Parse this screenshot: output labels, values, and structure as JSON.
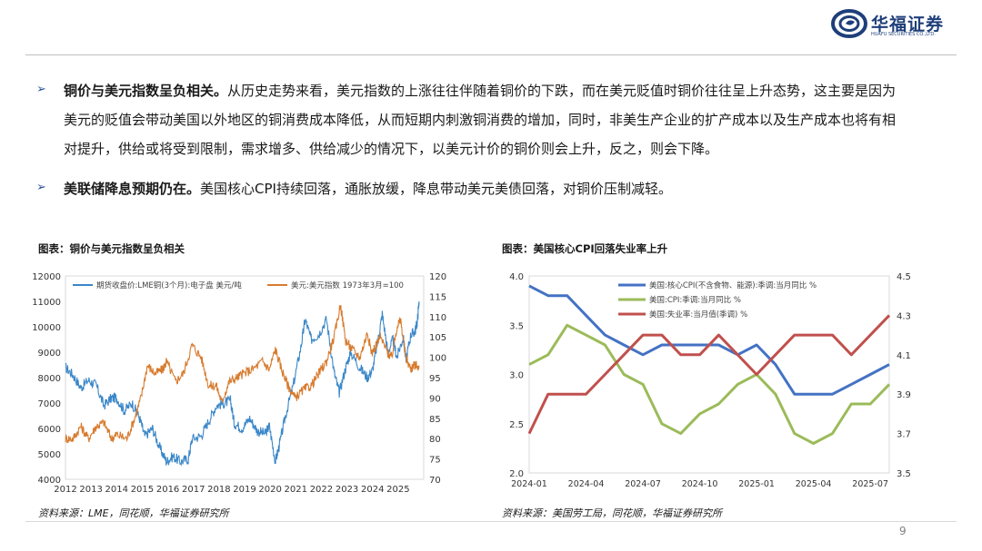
{
  "brand": {
    "name": "华福证券",
    "subtitle": "HUAFU SECURITIES CO.,LTD.",
    "colors": {
      "primary": "#1e3f7a"
    }
  },
  "bullets": [
    {
      "bold": "铜价与美元指数呈负相关。",
      "lines": [
        "从历史走势来看，美元指数的上涨往往伴随着铜价的下跌，而在美元贬值时铜价往往呈上升态势，这主要是因为",
        "美元的贬值会带动美国以外地区的铜消费成本降低，从而短期内刺激铜消费的增加，同时，非美生产企业的扩产成本以及生产成本也将有相",
        "对提升，供给或将受到限制，需求增多、供给减少的情况下，以美元计价的铜价则会上升，反之，则会下降。"
      ]
    },
    {
      "bold": "美联储降息预期仍在。",
      "lines": [
        "美国核心CPI持续回落，通胀放缓，降息带动美元美债回落，对铜价压制减轻。"
      ]
    }
  ],
  "left_panel": {
    "title": "图表：铜价与美元指数呈负相关",
    "source": "资料来源：LME，同花顺，华福证券研究所"
  },
  "right_panel": {
    "title": "图表：美国核心CPI回落失业率上升",
    "source": "资料来源：美国劳工局，同花顺，华福证券研究所"
  },
  "page_number": "9",
  "chart_data": [
    {
      "type": "line",
      "x_tick_labels": [
        "2012",
        "2013",
        "2014",
        "2015",
        "2016",
        "2017",
        "2018",
        "2019",
        "2020",
        "2021",
        "2022",
        "2023",
        "2024",
        "2025"
      ],
      "y_left": {
        "ylim": [
          4000,
          12000
        ],
        "ticks": [
          "4000",
          "5000",
          "6000",
          "7000",
          "8000",
          "9000",
          "10000",
          "11000",
          "12000"
        ]
      },
      "y_right": {
        "ylim": [
          70,
          120
        ],
        "ticks": [
          "70",
          "75",
          "80",
          "85",
          "90",
          "95",
          "100",
          "105",
          "110",
          "115",
          "120"
        ]
      },
      "legend_position": "top",
      "grid": false,
      "series": [
        {
          "name": "期货收盘价:LME铜(3个月):电子盘 美元/吨",
          "axis": "left",
          "color": "#3b87c8",
          "points": [
            [
              2012.0,
              8400
            ],
            [
              2012.3,
              8100
            ],
            [
              2012.6,
              7600
            ],
            [
              2012.9,
              7900
            ],
            [
              2013.2,
              7700
            ],
            [
              2013.5,
              6900
            ],
            [
              2013.8,
              7200
            ],
            [
              2014.0,
              7200
            ],
            [
              2014.3,
              6700
            ],
            [
              2014.6,
              7000
            ],
            [
              2014.9,
              6400
            ],
            [
              2015.1,
              5700
            ],
            [
              2015.4,
              6000
            ],
            [
              2015.7,
              5200
            ],
            [
              2015.95,
              4700
            ],
            [
              2016.2,
              4900
            ],
            [
              2016.5,
              4700
            ],
            [
              2016.8,
              4800
            ],
            [
              2016.95,
              5600
            ],
            [
              2017.3,
              5700
            ],
            [
              2017.6,
              6300
            ],
            [
              2017.9,
              6900
            ],
            [
              2018.2,
              7000
            ],
            [
              2018.45,
              7100
            ],
            [
              2018.6,
              6200
            ],
            [
              2018.9,
              6000
            ],
            [
              2019.2,
              6400
            ],
            [
              2019.5,
              5900
            ],
            [
              2019.8,
              5800
            ],
            [
              2019.97,
              6100
            ],
            [
              2020.2,
              4700
            ],
            [
              2020.35,
              5300
            ],
            [
              2020.6,
              6500
            ],
            [
              2020.9,
              7700
            ],
            [
              2021.2,
              9200
            ],
            [
              2021.37,
              10300
            ],
            [
              2021.6,
              9500
            ],
            [
              2021.9,
              9700
            ],
            [
              2022.2,
              10300
            ],
            [
              2022.5,
              8200
            ],
            [
              2022.7,
              7400
            ],
            [
              2022.95,
              8400
            ],
            [
              2023.15,
              9000
            ],
            [
              2023.5,
              8400
            ],
            [
              2023.8,
              8000
            ],
            [
              2024.0,
              8300
            ],
            [
              2024.2,
              9400
            ],
            [
              2024.38,
              10500
            ],
            [
              2024.6,
              9000
            ],
            [
              2024.8,
              9500
            ],
            [
              2024.95,
              8800
            ],
            [
              2025.2,
              9600
            ],
            [
              2025.3,
              8700
            ],
            [
              2025.5,
              9700
            ],
            [
              2025.65,
              9800
            ],
            [
              2025.75,
              10200
            ],
            [
              2025.82,
              11000
            ]
          ]
        },
        {
          "name": "美元:美元指数 1973年3月=100",
          "axis": "right",
          "color": "#d77b2e",
          "points": [
            [
              2012.0,
              80
            ],
            [
              2012.3,
              80
            ],
            [
              2012.6,
              83
            ],
            [
              2012.9,
              80
            ],
            [
              2013.2,
              83
            ],
            [
              2013.5,
              84
            ],
            [
              2013.8,
              80
            ],
            [
              2014.0,
              81
            ],
            [
              2014.4,
              80
            ],
            [
              2014.7,
              85
            ],
            [
              2014.95,
              90
            ],
            [
              2015.2,
              98
            ],
            [
              2015.5,
              96
            ],
            [
              2015.8,
              97
            ],
            [
              2015.95,
              99
            ],
            [
              2016.3,
              94
            ],
            [
              2016.6,
              96
            ],
            [
              2016.95,
              103
            ],
            [
              2017.3,
              100
            ],
            [
              2017.6,
              93
            ],
            [
              2017.9,
              93
            ],
            [
              2018.1,
              89
            ],
            [
              2018.4,
              94
            ],
            [
              2018.7,
              95
            ],
            [
              2018.95,
              96
            ],
            [
              2019.3,
              97
            ],
            [
              2019.7,
              99
            ],
            [
              2019.97,
              97
            ],
            [
              2020.2,
              102
            ],
            [
              2020.45,
              97
            ],
            [
              2020.7,
              93
            ],
            [
              2020.97,
              90
            ],
            [
              2021.3,
              92
            ],
            [
              2021.6,
              93
            ],
            [
              2021.9,
              96
            ],
            [
              2022.2,
              99
            ],
            [
              2022.5,
              105
            ],
            [
              2022.75,
              113
            ],
            [
              2022.95,
              104
            ],
            [
              2023.2,
              102
            ],
            [
              2023.5,
              100
            ],
            [
              2023.8,
              106
            ],
            [
              2023.97,
              101
            ],
            [
              2024.3,
              105
            ],
            [
              2024.6,
              101
            ],
            [
              2024.75,
              100
            ],
            [
              2024.97,
              108
            ],
            [
              2025.1,
              109
            ],
            [
              2025.3,
              100
            ],
            [
              2025.5,
              97
            ],
            [
              2025.6,
              98
            ],
            [
              2025.82,
              98
            ]
          ]
        }
      ]
    },
    {
      "type": "line",
      "x_tick_labels": [
        "2024-01",
        "2024-04",
        "2024-07",
        "2024-10",
        "2025-01",
        "2025-04",
        "2025-07"
      ],
      "months": [
        "2024-01",
        "2024-02",
        "2024-03",
        "2024-04",
        "2024-05",
        "2024-06",
        "2024-07",
        "2024-08",
        "2024-09",
        "2024-10",
        "2024-11",
        "2024-12",
        "2025-01",
        "2025-02",
        "2025-03",
        "2025-04",
        "2025-05",
        "2025-06",
        "2025-07",
        "2025-08"
      ],
      "y_left": {
        "ylim": [
          2.0,
          4.0
        ],
        "ticks": [
          "2.0",
          "2.5",
          "3.0",
          "3.5",
          "4.0"
        ]
      },
      "y_right": {
        "ylim": [
          3.5,
          4.5
        ],
        "ticks": [
          "3.5",
          "3.7",
          "3.9",
          "4.1",
          "4.3",
          "4.5"
        ]
      },
      "legend_position": "top-left",
      "grid": false,
      "series": [
        {
          "name": "美国:核心CPI(不含食物、能源):季调:当月同比 %",
          "axis": "left",
          "color": "#4472c4",
          "values": [
            3.9,
            3.8,
            3.8,
            3.6,
            3.4,
            3.3,
            3.2,
            3.3,
            3.3,
            3.3,
            3.3,
            3.2,
            3.3,
            3.1,
            2.8,
            2.8,
            2.8,
            2.9,
            3.0,
            3.1
          ]
        },
        {
          "name": "美国:CPI:季调:当月同比 %",
          "axis": "left",
          "color": "#9bbb59",
          "values": [
            3.1,
            3.2,
            3.5,
            3.4,
            3.3,
            3.0,
            2.9,
            2.5,
            2.4,
            2.6,
            2.7,
            2.9,
            3.0,
            2.8,
            2.4,
            2.3,
            2.4,
            2.7,
            2.7,
            2.9
          ]
        },
        {
          "name": "美国:失业率:当月值(季调) %",
          "axis": "right",
          "color": "#c0504d",
          "values": [
            3.7,
            3.9,
            3.9,
            3.9,
            4.0,
            4.1,
            4.2,
            4.2,
            4.1,
            4.1,
            4.2,
            4.1,
            4.0,
            4.1,
            4.2,
            4.2,
            4.2,
            4.1,
            4.2,
            4.3
          ]
        }
      ]
    }
  ]
}
